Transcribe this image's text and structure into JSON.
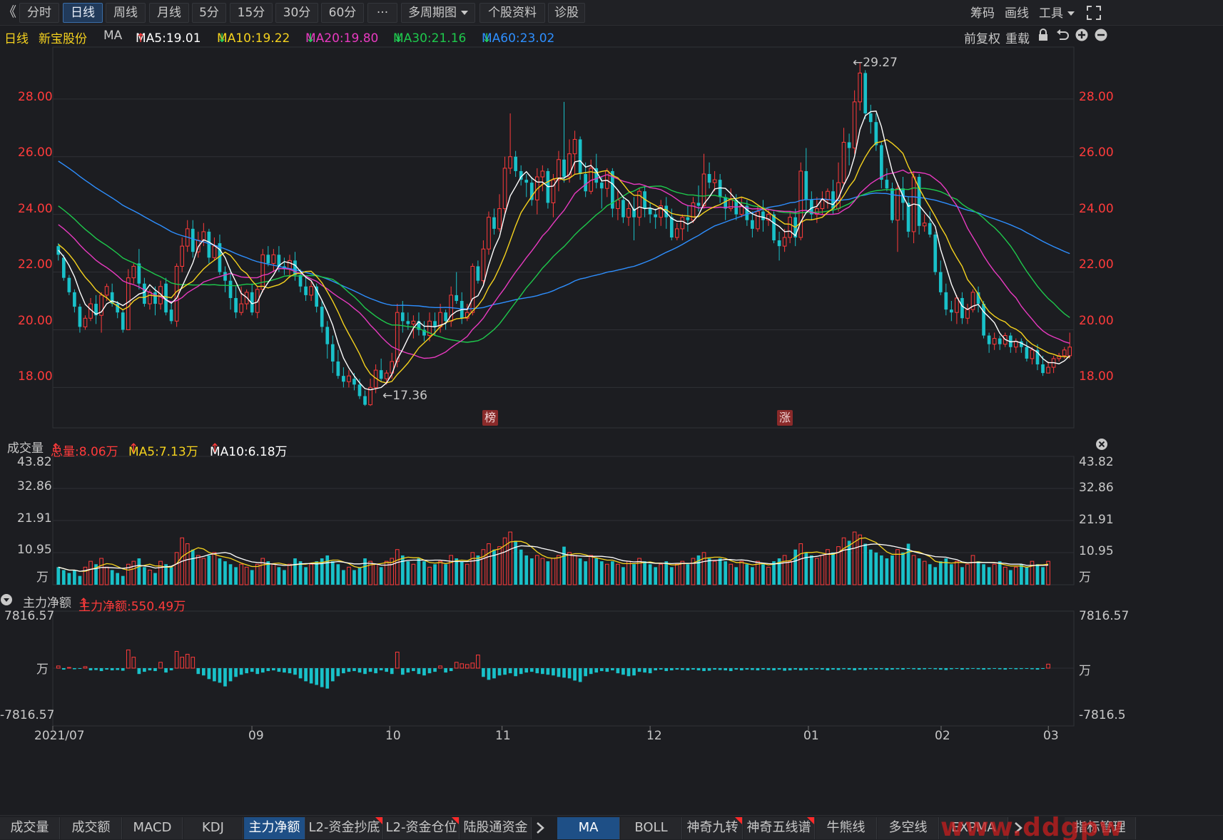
{
  "toolbar": {
    "back_glyph": "《",
    "periods": [
      "分时",
      "日线",
      "周线",
      "月线",
      "5分",
      "15分",
      "30分",
      "60分",
      "···"
    ],
    "active_period": "日线",
    "multi_period": "多周期图",
    "stock_info": "个股资料",
    "diagnosis": "诊股",
    "right": {
      "chips": "筹码",
      "draw": "画线",
      "tools": "工具"
    }
  },
  "main_panel": {
    "period_label": "日线",
    "stock_name": "新宝股份",
    "indicator": "MA",
    "ma5": "MA5:19.01",
    "ma10": "MA10:19.22",
    "ma20": "MA20:19.80",
    "ma30": "MA30:21.16",
    "ma60": "MA60:23.02",
    "adjust": "前复权",
    "reload": "重载",
    "y_ticks": [
      "28.00",
      "26.00",
      "24.00",
      "22.00",
      "20.00",
      "18.00"
    ],
    "high_label": "29.27",
    "low_label": "17.36",
    "badge_list": "榜",
    "badge_up": "涨"
  },
  "volume_panel": {
    "title": "成交量",
    "total": "总量:8.06万",
    "ma5": "MA5:7.13万",
    "ma10": "MA10:6.18万",
    "y_ticks": [
      "43.82",
      "32.86",
      "21.91",
      "10.95",
      "万"
    ]
  },
  "flow_panel": {
    "title": "主力净额",
    "value": "主力净额:550.49万",
    "y_ticks_left": [
      "7816.57",
      "万",
      "-7816.57"
    ],
    "y_ticks_right": [
      "7816.57",
      "万",
      "-7816.5"
    ]
  },
  "x_axis": [
    "2021/07",
    "09",
    "10",
    "11",
    "12",
    "01",
    "02",
    "03"
  ],
  "bottom_tabs": {
    "left": [
      "成交量",
      "成交额",
      "MACD",
      "KDJ",
      "主力净额",
      "L2-资金抄底",
      "L2-资金仓位",
      "陆股通资金"
    ],
    "left_active": "主力净额",
    "right": [
      "MA",
      "BOLL",
      "神奇九转",
      "神奇五线谱",
      "牛熊线",
      "多空线",
      "EXPMA"
    ],
    "right_active": "MA",
    "manage": "指标管理"
  },
  "watermark": "www.ddgpw",
  "colors": {
    "up": "#ff3b3b",
    "down": "#19c1c9",
    "ma5": "#ffffff",
    "ma10": "#f5d21e",
    "ma20": "#e83ac0",
    "ma30": "#1ec94c",
    "ma60": "#2e8fff"
  },
  "chart_data": {
    "type": "candlestick",
    "title": "新宝股份 日线",
    "candles": [
      [
        22.9,
        22.6,
        23.0,
        22.4
      ],
      [
        22.5,
        21.8,
        22.6,
        21.7
      ],
      [
        21.8,
        21.3,
        21.9,
        21.2
      ],
      [
        21.3,
        20.8,
        21.4,
        20.6
      ],
      [
        20.8,
        20.1,
        20.9,
        19.9
      ],
      [
        20.1,
        20.4,
        20.5,
        20.0
      ],
      [
        20.4,
        20.9,
        21.1,
        20.3
      ],
      [
        20.9,
        20.5,
        21.2,
        20.2
      ],
      [
        20.5,
        21.2,
        21.3,
        19.9
      ],
      [
        21.2,
        21.5,
        21.6,
        21.0
      ],
      [
        21.3,
        20.9,
        21.6,
        20.8
      ],
      [
        20.9,
        20.6,
        21.0,
        20.4
      ],
      [
        20.6,
        20.0,
        20.7,
        19.9
      ],
      [
        20.0,
        21.8,
        22.1,
        20.0
      ],
      [
        21.8,
        22.2,
        22.3,
        21.6
      ],
      [
        22.3,
        21.6,
        22.8,
        21.4
      ],
      [
        21.6,
        20.9,
        21.8,
        20.8
      ],
      [
        20.9,
        21.3,
        21.4,
        20.7
      ],
      [
        21.3,
        20.9,
        21.5,
        20.5
      ],
      [
        20.9,
        21.5,
        21.7,
        20.7
      ],
      [
        21.6,
        20.6,
        21.8,
        20.5
      ],
      [
        20.7,
        20.3,
        21.0,
        20.2
      ],
      [
        20.3,
        22.2,
        22.3,
        20.1
      ],
      [
        22.2,
        22.9,
        23.2,
        22.0
      ],
      [
        22.9,
        23.5,
        23.8,
        22.7
      ],
      [
        23.5,
        22.7,
        23.8,
        22.5
      ],
      [
        22.7,
        23.1,
        23.4,
        22.5
      ],
      [
        23.1,
        23.4,
        23.7,
        22.9
      ],
      [
        23.4,
        22.5,
        23.5,
        22.3
      ],
      [
        22.5,
        22.9,
        23.2,
        22.4
      ],
      [
        23.0,
        22.0,
        23.3,
        21.9
      ],
      [
        22.0,
        21.7,
        22.2,
        21.3
      ],
      [
        21.7,
        21.1,
        22.1,
        20.7
      ],
      [
        21.1,
        20.6,
        21.5,
        20.4
      ],
      [
        20.6,
        20.9,
        21.5,
        20.5
      ],
      [
        20.9,
        21.3,
        21.4,
        20.7
      ],
      [
        21.3,
        20.6,
        21.6,
        20.5
      ],
      [
        20.6,
        21.4,
        21.5,
        20.4
      ],
      [
        21.4,
        22.6,
        22.8,
        21.3
      ],
      [
        22.6,
        22.3,
        22.9,
        22.2
      ],
      [
        22.3,
        22.6,
        22.8,
        22.0
      ],
      [
        22.6,
        22.2,
        22.9,
        22.0
      ],
      [
        22.2,
        22.1,
        22.5,
        21.9
      ],
      [
        22.1,
        22.4,
        22.6,
        21.8
      ],
      [
        22.4,
        21.9,
        22.7,
        21.7
      ],
      [
        21.9,
        21.5,
        22.1,
        21.3
      ],
      [
        21.5,
        21.2,
        21.8,
        21.0
      ],
      [
        21.2,
        21.5,
        21.7,
        21.0
      ],
      [
        21.5,
        20.8,
        21.6,
        20.6
      ],
      [
        20.8,
        20.1,
        21.0,
        19.9
      ],
      [
        20.1,
        19.5,
        20.3,
        19.0
      ],
      [
        19.5,
        18.9,
        19.8,
        18.5
      ],
      [
        18.9,
        18.4,
        19.3,
        18.3
      ],
      [
        18.4,
        18.2,
        18.7,
        18.0
      ],
      [
        18.2,
        18.4,
        18.6,
        18.0
      ],
      [
        18.3,
        18.1,
        18.5,
        17.9
      ],
      [
        18.1,
        17.7,
        18.3,
        17.6
      ],
      [
        17.7,
        17.4,
        17.9,
        17.36
      ],
      [
        17.4,
        18.0,
        18.3,
        17.36
      ],
      [
        18.0,
        18.6,
        18.8,
        17.8
      ],
      [
        18.6,
        18.3,
        19.0,
        18.2
      ],
      [
        18.3,
        18.5,
        18.6,
        18.1
      ],
      [
        18.5,
        18.9,
        19.2,
        18.3
      ],
      [
        18.9,
        20.6,
        20.9,
        18.7
      ],
      [
        20.6,
        20.3,
        21.0,
        19.9
      ],
      [
        20.3,
        20.2,
        20.6,
        20.0
      ],
      [
        20.2,
        20.3,
        20.5,
        19.7
      ],
      [
        20.3,
        20.0,
        20.6,
        19.8
      ],
      [
        20.0,
        19.8,
        20.3,
        19.6
      ],
      [
        19.8,
        20.3,
        20.6,
        19.6
      ],
      [
        20.3,
        20.1,
        20.6,
        19.8
      ],
      [
        20.1,
        20.6,
        20.9,
        19.9
      ],
      [
        20.6,
        20.3,
        20.7,
        20.0
      ],
      [
        20.3,
        21.2,
        21.5,
        20.1
      ],
      [
        21.2,
        21.0,
        22.0,
        20.9
      ],
      [
        21.0,
        20.4,
        21.3,
        20.2
      ],
      [
        20.4,
        20.6,
        20.9,
        20.3
      ],
      [
        20.6,
        22.2,
        22.3,
        20.5
      ],
      [
        22.2,
        21.7,
        22.4,
        21.6
      ],
      [
        21.7,
        22.8,
        23.1,
        21.6
      ],
      [
        22.8,
        23.9,
        24.1,
        22.6
      ],
      [
        23.9,
        23.5,
        24.2,
        23.3
      ],
      [
        23.5,
        24.2,
        24.7,
        23.4
      ],
      [
        24.2,
        25.6,
        26.0,
        24.0
      ],
      [
        25.6,
        26.0,
        27.5,
        25.4
      ],
      [
        26.0,
        25.5,
        26.2,
        25.3
      ],
      [
        25.5,
        25.2,
        25.7,
        25.0
      ],
      [
        25.2,
        25.1,
        25.4,
        24.6
      ],
      [
        25.1,
        24.5,
        25.3,
        24.3
      ],
      [
        24.5,
        25.3,
        25.6,
        24.0
      ],
      [
        25.3,
        25.5,
        25.7,
        24.8
      ],
      [
        25.5,
        24.4,
        25.6,
        24.2
      ],
      [
        24.4,
        25.2,
        25.4,
        23.9
      ],
      [
        25.2,
        25.9,
        26.2,
        24.8
      ],
      [
        25.9,
        25.3,
        27.9,
        25.1
      ],
      [
        25.3,
        26.1,
        26.6,
        25.1
      ],
      [
        26.1,
        26.6,
        26.9,
        25.4
      ],
      [
        26.6,
        25.4,
        26.7,
        25.2
      ],
      [
        25.4,
        24.8,
        25.8,
        24.6
      ],
      [
        24.8,
        25.6,
        25.9,
        24.7
      ],
      [
        25.6,
        25.1,
        26.1,
        24.9
      ],
      [
        25.1,
        24.9,
        25.3,
        24.2
      ],
      [
        24.9,
        25.5,
        25.6,
        24.6
      ],
      [
        25.5,
        24.2,
        25.6,
        23.9
      ],
      [
        24.2,
        24.5,
        24.8,
        23.8
      ],
      [
        24.5,
        23.9,
        24.6,
        23.7
      ],
      [
        23.9,
        24.2,
        24.4,
        23.6
      ],
      [
        24.2,
        23.9,
        24.6,
        23.1
      ],
      [
        23.9,
        24.8,
        24.9,
        23.6
      ],
      [
        24.8,
        24.2,
        25.0,
        23.9
      ],
      [
        24.2,
        24.0,
        24.4,
        23.7
      ],
      [
        24.0,
        23.9,
        24.2,
        23.5
      ],
      [
        23.9,
        24.3,
        24.5,
        23.6
      ],
      [
        24.3,
        23.9,
        24.6,
        23.5
      ],
      [
        23.9,
        23.2,
        24.2,
        23.1
      ],
      [
        23.2,
        23.5,
        23.7,
        23.1
      ],
      [
        23.5,
        23.9,
        24.0,
        23.1
      ],
      [
        23.9,
        23.8,
        24.3,
        23.4
      ],
      [
        23.8,
        24.4,
        24.6,
        23.7
      ],
      [
        24.4,
        24.3,
        25.0,
        24.1
      ],
      [
        24.3,
        25.4,
        26.1,
        24.2
      ],
      [
        25.4,
        25.1,
        25.8,
        24.9
      ],
      [
        25.1,
        25.2,
        25.5,
        24.8
      ],
      [
        25.2,
        24.6,
        25.4,
        24.4
      ],
      [
        24.6,
        24.2,
        24.7,
        23.8
      ],
      [
        24.2,
        24.5,
        24.9,
        24.1
      ],
      [
        24.5,
        24.0,
        24.7,
        23.8
      ],
      [
        24.0,
        24.3,
        24.6,
        23.9
      ],
      [
        24.3,
        23.8,
        24.5,
        23.6
      ],
      [
        23.8,
        23.5,
        24.1,
        23.2
      ],
      [
        23.5,
        24.1,
        24.3,
        23.4
      ],
      [
        24.1,
        23.8,
        24.5,
        23.4
      ],
      [
        23.8,
        24.0,
        24.2,
        23.6
      ],
      [
        24.0,
        23.1,
        24.1,
        23.0
      ],
      [
        23.1,
        22.9,
        23.4,
        22.4
      ],
      [
        22.9,
        23.2,
        23.5,
        22.7
      ],
      [
        23.2,
        23.9,
        24.1,
        23.0
      ],
      [
        23.9,
        23.2,
        24.2,
        22.9
      ],
      [
        23.2,
        25.5,
        25.8,
        23.1
      ],
      [
        25.5,
        24.5,
        26.3,
        24.1
      ],
      [
        24.5,
        24.0,
        24.8,
        23.8
      ],
      [
        24.0,
        24.2,
        24.6,
        23.7
      ],
      [
        24.2,
        24.5,
        24.8,
        24.0
      ],
      [
        24.5,
        24.8,
        24.9,
        24.2
      ],
      [
        24.8,
        24.2,
        25.2,
        24.0
      ],
      [
        24.2,
        25.1,
        25.8,
        24.1
      ],
      [
        25.1,
        26.5,
        27.0,
        25.0
      ],
      [
        26.5,
        26.3,
        26.8,
        25.7
      ],
      [
        26.3,
        27.9,
        28.3,
        26.1
      ],
      [
        27.9,
        28.9,
        29.27,
        27.6
      ],
      [
        28.9,
        27.5,
        29.0,
        27.3
      ],
      [
        27.5,
        27.2,
        27.8,
        26.8
      ],
      [
        27.2,
        26.4,
        27.5,
        26.2
      ],
      [
        26.4,
        25.2,
        26.5,
        24.9
      ],
      [
        25.2,
        24.9,
        25.6,
        24.8
      ],
      [
        24.9,
        23.8,
        25.1,
        23.7
      ],
      [
        23.8,
        24.9,
        25.1,
        22.7
      ],
      [
        24.9,
        24.4,
        25.3,
        23.8
      ],
      [
        24.4,
        23.4,
        24.6,
        23.2
      ],
      [
        23.4,
        25.3,
        25.5,
        23.0
      ],
      [
        25.3,
        23.6,
        25.4,
        23.3
      ],
      [
        23.6,
        23.7,
        24.0,
        23.4
      ],
      [
        23.7,
        23.3,
        24.1,
        23.2
      ],
      [
        23.3,
        22.0,
        23.4,
        21.9
      ],
      [
        22.0,
        21.3,
        22.4,
        21.2
      ],
      [
        21.3,
        20.7,
        21.6,
        20.5
      ],
      [
        20.7,
        20.6,
        21.0,
        20.3
      ],
      [
        20.6,
        21.1,
        21.2,
        20.2
      ],
      [
        21.1,
        20.4,
        21.3,
        20.2
      ],
      [
        20.4,
        20.7,
        20.9,
        20.2
      ],
      [
        20.7,
        21.3,
        21.4,
        20.6
      ],
      [
        21.3,
        20.9,
        21.5,
        20.6
      ],
      [
        20.9,
        19.8,
        21.0,
        19.7
      ],
      [
        19.8,
        19.5,
        19.9,
        19.2
      ],
      [
        19.5,
        19.7,
        19.9,
        19.3
      ],
      [
        19.7,
        19.5,
        19.8,
        19.3
      ],
      [
        19.5,
        19.8,
        19.9,
        19.4
      ],
      [
        19.8,
        19.4,
        19.9,
        19.2
      ],
      [
        19.4,
        19.6,
        19.7,
        19.2
      ],
      [
        19.6,
        19.4,
        19.7,
        19.2
      ],
      [
        19.4,
        19.0,
        19.6,
        18.9
      ],
      [
        19.0,
        19.3,
        19.4,
        18.8
      ],
      [
        19.3,
        18.8,
        19.5,
        18.6
      ],
      [
        18.8,
        18.5,
        19.1,
        18.4
      ],
      [
        18.5,
        18.7,
        18.9,
        18.5
      ],
      [
        18.7,
        19.0,
        19.1,
        18.5
      ],
      [
        19.0,
        19.1,
        19.2,
        18.9
      ],
      [
        19.1,
        19.3,
        19.4,
        19.0
      ],
      [
        19.1,
        19.4,
        19.9,
        19.0
      ]
    ],
    "volume": [
      6,
      5,
      4,
      5,
      3,
      6,
      8,
      7,
      9,
      6,
      5,
      4,
      3,
      7,
      8,
      9,
      6,
      5,
      4,
      8,
      7,
      6,
      11,
      16,
      14,
      12,
      10,
      9,
      10,
      11,
      9,
      8,
      7,
      6,
      7,
      6,
      5,
      7,
      9,
      8,
      7,
      6,
      5,
      7,
      9,
      8,
      6,
      7,
      8,
      9,
      10,
      8,
      7,
      5,
      6,
      5,
      6,
      9,
      8,
      7,
      6,
      8,
      9,
      12,
      10,
      8,
      7,
      9,
      8,
      6,
      7,
      8,
      7,
      10,
      9,
      8,
      7,
      11,
      10,
      12,
      14,
      12,
      13,
      16,
      18,
      15,
      12,
      10,
      9,
      10,
      9,
      8,
      9,
      10,
      13,
      11,
      10,
      9,
      8,
      10,
      9,
      8,
      7,
      8,
      7,
      6,
      8,
      7,
      9,
      8,
      7,
      6,
      7,
      8,
      6,
      7,
      8,
      7,
      9,
      10,
      11,
      9,
      8,
      9,
      8,
      7,
      6,
      8,
      7,
      6,
      8,
      7,
      6,
      8,
      9,
      10,
      8,
      12,
      14,
      11,
      10,
      9,
      10,
      12,
      11,
      13,
      16,
      15,
      18,
      17,
      14,
      12,
      11,
      10,
      9,
      10,
      12,
      11,
      14,
      10,
      9,
      8,
      7,
      6,
      8,
      9,
      7,
      8,
      6,
      7,
      10,
      8,
      7,
      6,
      7,
      8,
      6,
      5,
      6,
      7,
      6,
      8,
      7,
      6,
      8
    ],
    "net_flow": [
      300,
      -200,
      100,
      -150,
      -100,
      200,
      -300,
      -250,
      -400,
      -200,
      -300,
      -250,
      -350,
      2500,
      1500,
      -800,
      -500,
      -300,
      -400,
      800,
      -600,
      -300,
      2300,
      1500,
      1900,
      1500,
      -800,
      -1000,
      -1500,
      -1800,
      -2000,
      -2500,
      -1800,
      -1200,
      -900,
      -700,
      -500,
      -800,
      -600,
      -400,
      -300,
      -500,
      -600,
      -700,
      -900,
      -1400,
      -1800,
      -2100,
      -2300,
      -2600,
      -2800,
      -1800,
      -1100,
      -700,
      -500,
      -400,
      -600,
      -800,
      -500,
      -700,
      -300,
      -500,
      -800,
      2200,
      -900,
      -600,
      -400,
      -800,
      -1000,
      -700,
      -500,
      300,
      -600,
      -400,
      800,
      600,
      500,
      700,
      1800,
      -1200,
      -1600,
      -1400,
      -1000,
      -900,
      -700,
      -1100,
      -800,
      -600,
      -500,
      -700,
      -800,
      -900,
      -1000,
      -1200,
      -1300,
      -1400,
      -1700,
      -1900,
      -1100,
      -800,
      -600,
      -400,
      -500,
      -300,
      -700,
      -900,
      -1100,
      -1000,
      -500,
      -600,
      -700,
      -300,
      -200,
      -400,
      -300,
      -200,
      -250,
      -300,
      -200,
      -300,
      -400,
      -350,
      -200,
      -250,
      -300,
      -400,
      -200,
      -300,
      -200,
      -250,
      -300,
      -200,
      -250,
      -300,
      -200,
      -350,
      -300,
      -200,
      -300,
      -250,
      -200,
      -150,
      -200,
      -300,
      -200,
      -250,
      -150,
      -200,
      -300,
      -200,
      -250,
      -150,
      -200,
      -150,
      -250,
      -200,
      -150,
      -200,
      -100,
      -150,
      -200,
      -150,
      -100,
      -150,
      -200,
      -250,
      -150,
      -100,
      -200,
      -150,
      -100,
      -150,
      -200,
      -150,
      -100,
      -150,
      -200,
      -100,
      -150,
      -120,
      -100,
      -150,
      -200,
      -100,
      550
    ],
    "y_range": [
      16.6,
      29.8
    ],
    "x_labels": [
      "2021/07",
      "09",
      "10",
      "11",
      "12",
      "01",
      "02",
      "03"
    ]
  }
}
